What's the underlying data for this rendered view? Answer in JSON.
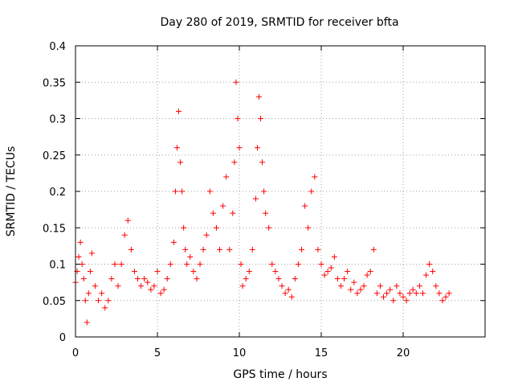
{
  "chart_data": {
    "type": "scatter",
    "title": "Day 280 of 2019, SRMTID for receiver bfta",
    "xlabel": "GPS time / hours",
    "ylabel": "SRMTID / TECUs",
    "xlim": [
      0,
      25
    ],
    "ylim": [
      0,
      0.4
    ],
    "xticks": [
      0,
      5,
      10,
      15,
      20
    ],
    "xtick_labels": [
      "0",
      "5",
      "10",
      "15",
      "20"
    ],
    "yticks": [
      0,
      0.05,
      0.1,
      0.15,
      0.2,
      0.25,
      0.3,
      0.35,
      0.4
    ],
    "ytick_labels": [
      "0",
      "0.05",
      "0.1",
      "0.15",
      "0.2",
      "0.25",
      "0.3",
      "0.35",
      "0.4"
    ],
    "grid": true,
    "marker": "plus",
    "series": [
      {
        "name": "SRMTID",
        "color": "#ff0000",
        "x": [
          0.0,
          0.1,
          0.2,
          0.3,
          0.4,
          0.5,
          0.6,
          0.7,
          0.8,
          0.9,
          1.0,
          1.2,
          1.4,
          1.6,
          1.8,
          2.0,
          2.2,
          2.4,
          2.6,
          2.8,
          3.0,
          3.2,
          3.4,
          3.6,
          3.8,
          4.0,
          4.2,
          4.4,
          4.6,
          4.8,
          5.0,
          5.2,
          5.4,
          5.6,
          5.8,
          6.0,
          6.1,
          6.2,
          6.3,
          6.4,
          6.5,
          6.6,
          6.7,
          6.8,
          7.0,
          7.2,
          7.4,
          7.6,
          7.8,
          8.0,
          8.2,
          8.4,
          8.6,
          8.8,
          9.0,
          9.2,
          9.4,
          9.6,
          9.7,
          9.8,
          9.9,
          10.0,
          10.1,
          10.2,
          10.4,
          10.6,
          10.8,
          11.0,
          11.1,
          11.2,
          11.3,
          11.4,
          11.5,
          11.6,
          11.8,
          12.0,
          12.2,
          12.4,
          12.6,
          12.8,
          13.0,
          13.2,
          13.4,
          13.6,
          13.8,
          14.0,
          14.2,
          14.4,
          14.6,
          14.8,
          15.0,
          15.2,
          15.4,
          15.6,
          15.8,
          16.0,
          16.2,
          16.4,
          16.6,
          16.8,
          17.0,
          17.2,
          17.4,
          17.6,
          17.8,
          18.0,
          18.2,
          18.4,
          18.6,
          18.8,
          19.0,
          19.2,
          19.4,
          19.6,
          19.8,
          20.0,
          20.2,
          20.4,
          20.6,
          20.8,
          21.0,
          21.2,
          21.4,
          21.6,
          21.8,
          22.0,
          22.2,
          22.4,
          22.6,
          22.8
        ],
        "y": [
          0.075,
          0.09,
          0.11,
          0.13,
          0.1,
          0.08,
          0.05,
          0.02,
          0.06,
          0.09,
          0.115,
          0.07,
          0.05,
          0.06,
          0.04,
          0.05,
          0.08,
          0.1,
          0.07,
          0.1,
          0.14,
          0.16,
          0.12,
          0.09,
          0.08,
          0.07,
          0.08,
          0.075,
          0.065,
          0.07,
          0.09,
          0.06,
          0.065,
          0.08,
          0.1,
          0.13,
          0.2,
          0.26,
          0.31,
          0.24,
          0.2,
          0.15,
          0.12,
          0.1,
          0.11,
          0.09,
          0.08,
          0.1,
          0.12,
          0.14,
          0.2,
          0.17,
          0.15,
          0.12,
          0.18,
          0.22,
          0.12,
          0.17,
          0.24,
          0.35,
          0.3,
          0.26,
          0.1,
          0.07,
          0.08,
          0.09,
          0.12,
          0.19,
          0.26,
          0.33,
          0.3,
          0.24,
          0.2,
          0.17,
          0.15,
          0.1,
          0.09,
          0.08,
          0.07,
          0.06,
          0.065,
          0.055,
          0.08,
          0.1,
          0.12,
          0.18,
          0.15,
          0.2,
          0.22,
          0.12,
          0.1,
          0.085,
          0.09,
          0.095,
          0.11,
          0.08,
          0.07,
          0.08,
          0.09,
          0.065,
          0.075,
          0.06,
          0.065,
          0.07,
          0.085,
          0.09,
          0.12,
          0.06,
          0.07,
          0.055,
          0.06,
          0.065,
          0.05,
          0.07,
          0.06,
          0.055,
          0.05,
          0.06,
          0.065,
          0.06,
          0.07,
          0.06,
          0.085,
          0.1,
          0.09,
          0.07,
          0.06,
          0.05,
          0.055,
          0.06
        ]
      }
    ]
  }
}
